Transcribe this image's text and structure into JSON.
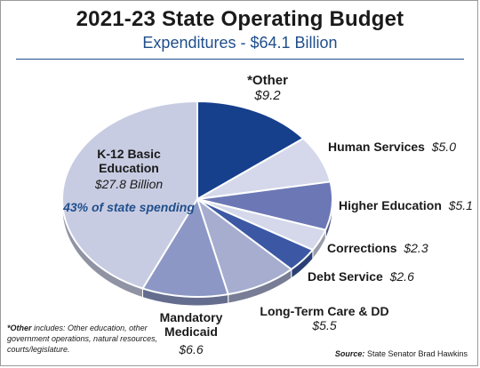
{
  "chart_data": {
    "type": "pie",
    "title": "2021-23 State Operating Budget",
    "subtitle": "Expenditures - $64.1 Billion",
    "unit": "$ Billion",
    "slices": [
      {
        "label": "*Other",
        "value_label": "$9.2",
        "value": 9.2,
        "color": "#163f8c"
      },
      {
        "label": "Human Services",
        "value_label": "$5.0",
        "value": 5.0,
        "color": "#d4d8ea"
      },
      {
        "label": "Higher Education",
        "value_label": "$5.1",
        "value": 5.1,
        "color": "#6c78b5"
      },
      {
        "label": "Corrections",
        "value_label": "$2.3",
        "value": 2.3,
        "color": "#d4d8ea"
      },
      {
        "label": "Debt Service",
        "value_label": "$2.6",
        "value": 2.6,
        "color": "#3c58a4"
      },
      {
        "label": "Long-Term Care & DD",
        "value_label": "$5.5",
        "value": 5.5,
        "color": "#a6adcf"
      },
      {
        "label": "Mandatory Medicaid",
        "value_label": "$6.6",
        "value": 6.6,
        "color": "#8c97c5"
      },
      {
        "label": "K-12 Basic Education",
        "value_label": "$27.8 Billion",
        "value": 27.8,
        "color": "#c8cce2"
      }
    ],
    "annotation": "43% of state spending"
  },
  "labels": {
    "other_name": "*Other",
    "other_val": "$9.2",
    "human_name": "Human Services",
    "human_val": "$5.0",
    "higher_name": "Higher Education",
    "higher_val": "$5.1",
    "corrections_name": "Corrections",
    "corrections_val": "$2.3",
    "debt_name": "Debt Service",
    "debt_val": "$2.6",
    "ltc_name": "Long-Term Care & DD",
    "ltc_val": "$5.5",
    "medicaid_name_1": "Mandatory",
    "medicaid_name_2": "Medicaid",
    "medicaid_val": "$6.6",
    "k12_name_1": "K-12 Basic",
    "k12_name_2": "Education",
    "k12_val": "$27.8 Billion",
    "k12_pct": "43% of state spending"
  },
  "footnote": {
    "term": "*Other",
    "text": " includes: Other education, other government operations, natural resources, courts/legislature."
  },
  "source": {
    "label": "Source:",
    "text": " State Senator Brad Hawkins"
  },
  "colors": {
    "accent": "#1f4e8c",
    "edge": "#ffffff"
  }
}
